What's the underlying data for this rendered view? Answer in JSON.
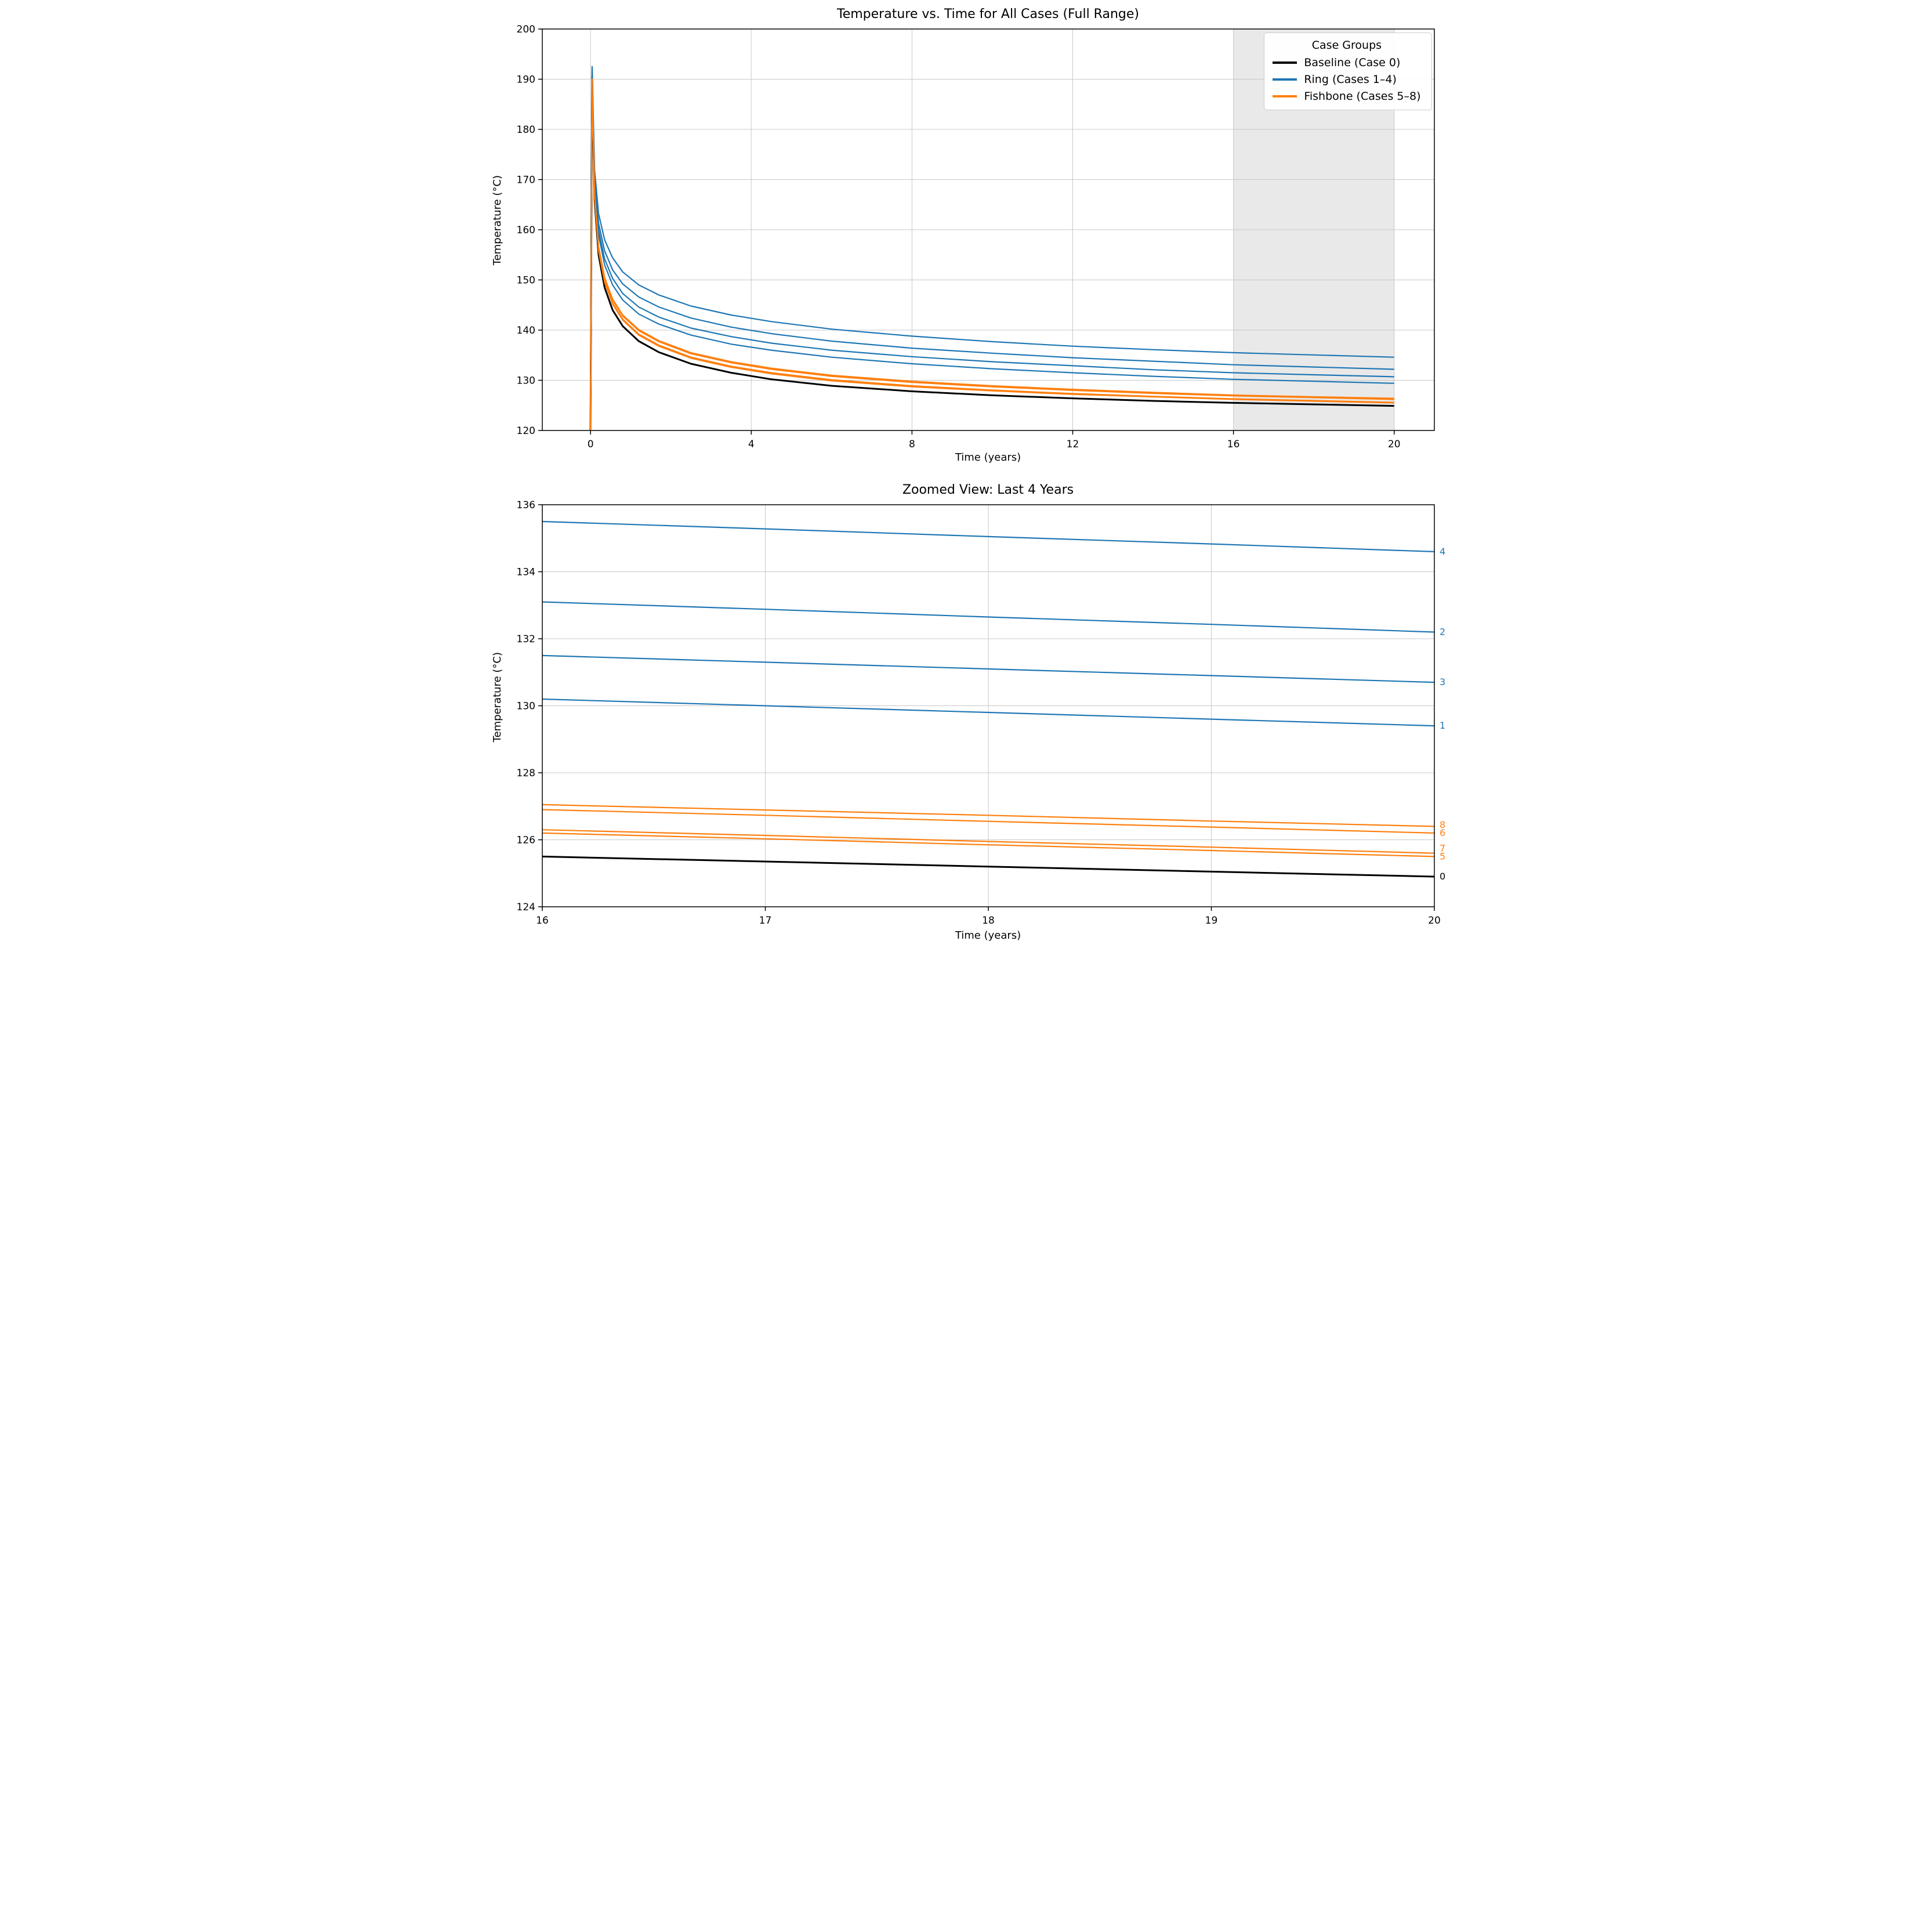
{
  "figure": {
    "background": "#ffffff",
    "colors": {
      "baseline": "#000000",
      "ring": "#1f77b4",
      "fishbone": "#ff7f0e",
      "grid": "#c8c8c8",
      "shade": "#e9e9e9"
    }
  },
  "chart_data": [
    {
      "type": "line",
      "title": "Temperature vs. Time for All Cases (Full Range)",
      "xlabel": "Time (years)",
      "ylabel": "Temperature (°C)",
      "xlim": [
        -1.2,
        21
      ],
      "ylim": [
        120,
        200
      ],
      "xticks": [
        0,
        4,
        8,
        12,
        16,
        20
      ],
      "yticks": [
        120,
        130,
        140,
        150,
        160,
        170,
        180,
        190,
        200
      ],
      "grid": true,
      "shaded_region": {
        "x0": 16,
        "x1": 20,
        "color": "#e9e9e9"
      },
      "legend": {
        "title": "Case Groups",
        "position": "upper right",
        "entries": [
          {
            "label": "Baseline (Case 0)",
            "color": "#000000"
          },
          {
            "label": "Ring (Cases 1–4)",
            "color": "#1f77b4"
          },
          {
            "label": "Fishbone (Cases 5–8)",
            "color": "#ff7f0e"
          }
        ]
      },
      "x": [
        0,
        0.04,
        0.1,
        0.2,
        0.35,
        0.55,
        0.8,
        1.2,
        1.7,
        2.5,
        3.5,
        4.5,
        6,
        8,
        10,
        12,
        14,
        16,
        18,
        20
      ],
      "series": [
        {
          "name": "Case 0",
          "case_label": "0",
          "group": "Baseline",
          "color": "#000000",
          "width": 3,
          "values": [
            120,
            190.5,
            166,
            155,
            148.5,
            144,
            140.8,
            137.8,
            135.6,
            133.3,
            131.5,
            130.2,
            128.9,
            127.8,
            127.0,
            126.4,
            125.9,
            125.5,
            125.2,
            124.9
          ]
        },
        {
          "name": "Case 1",
          "case_label": "1",
          "group": "Ring",
          "color": "#1f77b4",
          "width": 2.2,
          "values": [
            120,
            191,
            169,
            159,
            153,
            149,
            146,
            143.2,
            141.2,
            139,
            137.2,
            136,
            134.6,
            133.3,
            132.3,
            131.5,
            130.8,
            130.2,
            129.8,
            129.4
          ]
        },
        {
          "name": "Case 2",
          "case_label": "2",
          "group": "Ring",
          "color": "#1f77b4",
          "width": 2.2,
          "values": [
            120,
            192,
            170.5,
            161.3,
            155.8,
            152,
            149.2,
            146.6,
            144.6,
            142.4,
            140.6,
            139.3,
            137.8,
            136.4,
            135.4,
            134.5,
            133.8,
            133.1,
            132.65,
            132.2
          ]
        },
        {
          "name": "Case 3",
          "case_label": "3",
          "group": "Ring",
          "color": "#1f77b4",
          "width": 2.2,
          "values": [
            120,
            191.5,
            169.5,
            160,
            154.2,
            150.3,
            147.3,
            144.6,
            142.6,
            140.4,
            138.7,
            137.4,
            136,
            134.7,
            133.7,
            132.9,
            132.1,
            131.5,
            131.1,
            130.7
          ]
        },
        {
          "name": "Case 4",
          "case_label": "4",
          "group": "Ring",
          "color": "#1f77b4",
          "width": 2.2,
          "values": [
            120,
            192.5,
            172,
            163.2,
            158,
            154.4,
            151.6,
            149,
            147,
            144.8,
            143,
            141.7,
            140.2,
            138.8,
            137.7,
            136.8,
            136.1,
            135.5,
            135.05,
            134.6
          ]
        },
        {
          "name": "Case 5",
          "case_label": "5",
          "group": "Fishbone",
          "color": "#ff7f0e",
          "width": 2.2,
          "values": [
            120,
            189.5,
            166.5,
            155.8,
            149.5,
            145.2,
            142,
            139,
            136.8,
            134.4,
            132.6,
            131.3,
            129.9,
            128.7,
            127.9,
            127.2,
            126.7,
            126.2,
            125.85,
            125.5
          ]
        },
        {
          "name": "Case 6",
          "case_label": "6",
          "group": "Fishbone",
          "color": "#ff7f0e",
          "width": 2.2,
          "values": [
            120,
            190,
            167,
            156.5,
            150.3,
            146,
            142.8,
            139.9,
            137.7,
            135.3,
            133.5,
            132.2,
            130.8,
            129.6,
            128.7,
            128.0,
            127.4,
            126.9,
            126.55,
            126.2
          ]
        },
        {
          "name": "Case 7",
          "case_label": "7",
          "group": "Fishbone",
          "color": "#ff7f0e",
          "width": 2.2,
          "values": [
            120,
            189.5,
            166.6,
            156,
            149.7,
            145.4,
            142.2,
            139.2,
            137,
            134.6,
            132.8,
            131.5,
            130.1,
            128.9,
            128.05,
            127.35,
            126.8,
            126.3,
            125.95,
            125.6
          ]
        },
        {
          "name": "Case 8",
          "case_label": "8",
          "group": "Fishbone",
          "color": "#ff7f0e",
          "width": 2.2,
          "values": [
            120,
            190,
            167.2,
            156.7,
            150.5,
            146.2,
            143,
            140.1,
            137.9,
            135.5,
            133.7,
            132.4,
            131.0,
            129.8,
            128.9,
            128.2,
            127.6,
            127.05,
            126.7,
            126.4
          ]
        }
      ]
    },
    {
      "type": "line",
      "title": "Zoomed View: Last 4 Years",
      "xlabel": "Time (years)",
      "ylabel": "Temperature (°C)",
      "xlim": [
        16,
        20
      ],
      "ylim": [
        124,
        136
      ],
      "xticks": [
        16,
        17,
        18,
        19,
        20
      ],
      "yticks": [
        124,
        126,
        128,
        130,
        132,
        134,
        136
      ],
      "grid": true,
      "end_labels": true,
      "x": [
        16,
        17,
        18,
        19,
        20
      ],
      "series": [
        {
          "name": "Case 0",
          "case_label": "0",
          "group": "Baseline",
          "color": "#000000",
          "width": 3,
          "values": [
            125.5,
            125.35,
            125.2,
            125.05,
            124.9
          ]
        },
        {
          "name": "Case 1",
          "case_label": "1",
          "group": "Ring",
          "color": "#1f77b4",
          "width": 2.2,
          "values": [
            130.2,
            130.0,
            129.8,
            129.6,
            129.4
          ]
        },
        {
          "name": "Case 2",
          "case_label": "2",
          "group": "Ring",
          "color": "#1f77b4",
          "width": 2.2,
          "values": [
            133.1,
            132.88,
            132.65,
            132.43,
            132.2
          ]
        },
        {
          "name": "Case 3",
          "case_label": "3",
          "group": "Ring",
          "color": "#1f77b4",
          "width": 2.2,
          "values": [
            131.5,
            131.3,
            131.1,
            130.9,
            130.7
          ]
        },
        {
          "name": "Case 4",
          "case_label": "4",
          "group": "Ring",
          "color": "#1f77b4",
          "width": 2.2,
          "values": [
            135.5,
            135.28,
            135.05,
            134.83,
            134.6
          ]
        },
        {
          "name": "Case 5",
          "case_label": "5",
          "group": "Fishbone",
          "color": "#ff7f0e",
          "width": 2.2,
          "values": [
            126.2,
            126.03,
            125.85,
            125.68,
            125.5
          ]
        },
        {
          "name": "Case 6",
          "case_label": "6",
          "group": "Fishbone",
          "color": "#ff7f0e",
          "width": 2.2,
          "values": [
            126.9,
            126.73,
            126.55,
            126.38,
            126.2
          ]
        },
        {
          "name": "Case 7",
          "case_label": "7",
          "group": "Fishbone",
          "color": "#ff7f0e",
          "width": 2.2,
          "values": [
            126.3,
            126.13,
            125.95,
            125.78,
            125.6
          ]
        },
        {
          "name": "Case 8",
          "case_label": "8",
          "group": "Fishbone",
          "color": "#ff7f0e",
          "width": 2.2,
          "values": [
            127.05,
            126.89,
            126.73,
            126.56,
            126.4
          ]
        }
      ]
    }
  ]
}
